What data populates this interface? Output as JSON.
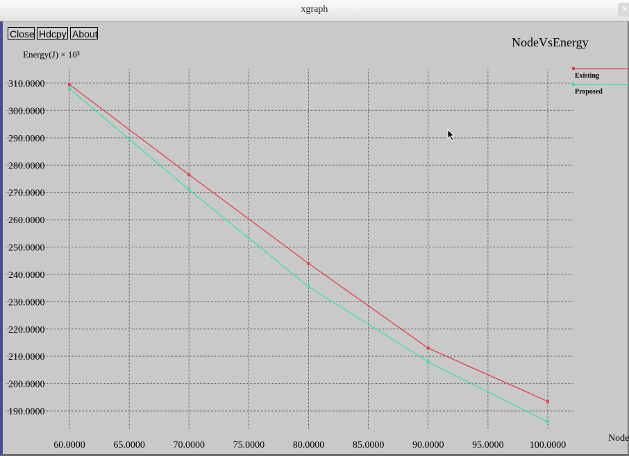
{
  "window": {
    "title": "xgraph",
    "close_glyph": "×"
  },
  "toolbar": {
    "close_label": "Close",
    "hdcpy_label": "Hdcpy",
    "about_label": "About"
  },
  "colors": {
    "background": "#c9c9c9",
    "grid": "#5a5a5a",
    "existing": "#e0404a",
    "proposed": "#3fe0a0"
  },
  "icons": {
    "cursor": "mouse-pointer-icon"
  },
  "chart_data": {
    "type": "line",
    "title": "NodeVsEnergy",
    "ylabel": "Energy(J) × 10³",
    "xlabel": "Node",
    "xlim": [
      60,
      100
    ],
    "ylim": [
      185,
      312
    ],
    "x_ticks": [
      "60.0000",
      "65.0000",
      "70.0000",
      "75.0000",
      "80.0000",
      "85.0000",
      "90.0000",
      "95.0000",
      "100.0000"
    ],
    "y_ticks": [
      "310.0000",
      "300.0000",
      "290.0000",
      "280.0000",
      "270.0000",
      "260.0000",
      "250.0000",
      "240.0000",
      "230.0000",
      "220.0000",
      "210.0000",
      "200.0000",
      "190.0000"
    ],
    "grid": true,
    "legend_position": "top-right",
    "series": [
      {
        "name": "Existing",
        "x": [
          60,
          70,
          80,
          90,
          100
        ],
        "y": [
          309.5,
          276.5,
          244,
          213,
          193.5
        ]
      },
      {
        "name": "Proposed",
        "x": [
          60,
          70,
          80,
          90,
          100
        ],
        "y": [
          308,
          271,
          235.5,
          208,
          186
        ]
      }
    ]
  }
}
